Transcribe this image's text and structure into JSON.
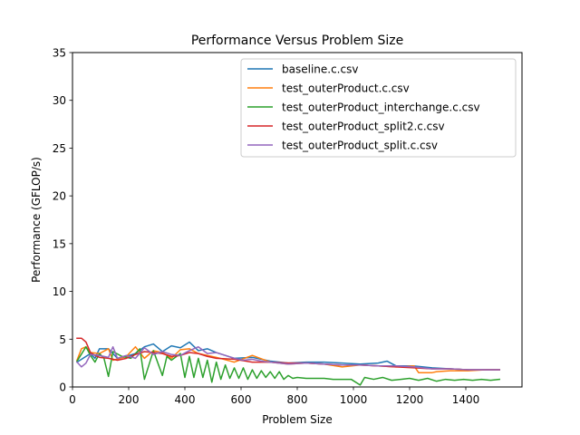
{
  "chart_data": {
    "type": "line",
    "title": "Performance Versus Problem Size",
    "xlabel": "Problem Size",
    "ylabel": "Performance (GFLOP/s)",
    "xlim": [
      0,
      1600
    ],
    "ylim": [
      0,
      35
    ],
    "x_ticks": [
      0,
      200,
      400,
      600,
      800,
      1000,
      1200,
      1400
    ],
    "y_ticks": [
      0,
      5,
      10,
      15,
      20,
      25,
      30,
      35
    ],
    "grid": false,
    "legend_position": "top-right",
    "series": [
      {
        "name": "baseline.c.csv",
        "color": "#1f77b4",
        "x": [
          16,
          64,
          80,
          96,
          128,
          160,
          192,
          224,
          256,
          288,
          320,
          352,
          384,
          416,
          448,
          480,
          512,
          576,
          640,
          704,
          768,
          832,
          896,
          960,
          1024,
          1088,
          1120,
          1152,
          1216,
          1280,
          1344,
          1408,
          1472,
          1520
        ],
        "y": [
          2.6,
          3.5,
          3.0,
          4.0,
          4.0,
          3.0,
          3.2,
          3.5,
          4.2,
          4.5,
          3.7,
          4.3,
          4.1,
          4.7,
          3.8,
          4.0,
          3.6,
          3.0,
          3.1,
          2.7,
          2.5,
          2.6,
          2.6,
          2.5,
          2.4,
          2.5,
          2.7,
          2.2,
          2.2,
          2.0,
          1.9,
          1.8,
          1.8,
          1.8
        ]
      },
      {
        "name": "test_outerProduct.c.csv",
        "color": "#ff7f0e",
        "x": [
          16,
          32,
          48,
          64,
          96,
          128,
          144,
          192,
          224,
          256,
          288,
          320,
          352,
          384,
          416,
          448,
          480,
          512,
          576,
          640,
          704,
          768,
          832,
          896,
          960,
          1024,
          1088,
          1152,
          1216,
          1232,
          1280,
          1296,
          1344,
          1408,
          1472,
          1520
        ],
        "y": [
          2.8,
          4.0,
          4.2,
          3.6,
          3.5,
          4.0,
          2.8,
          3.2,
          4.2,
          3.0,
          3.8,
          3.6,
          3.0,
          3.9,
          4.0,
          3.5,
          3.3,
          3.1,
          2.6,
          3.3,
          2.6,
          2.4,
          2.5,
          2.4,
          2.1,
          2.3,
          2.2,
          2.1,
          2.2,
          1.5,
          1.5,
          1.6,
          1.7,
          1.7,
          1.8,
          1.8
        ]
      },
      {
        "name": "test_outerProduct_interchange.c.csv",
        "color": "#2ca02c",
        "x": [
          16,
          48,
          64,
          80,
          96,
          112,
          128,
          144,
          176,
          208,
          240,
          256,
          288,
          320,
          336,
          352,
          384,
          400,
          416,
          432,
          448,
          464,
          480,
          496,
          512,
          528,
          544,
          560,
          576,
          592,
          608,
          624,
          640,
          656,
          672,
          688,
          704,
          720,
          736,
          752,
          768,
          784,
          800,
          832,
          864,
          896,
          928,
          960,
          992,
          1024,
          1040,
          1072,
          1104,
          1136,
          1168,
          1200,
          1232,
          1264,
          1296,
          1328,
          1360,
          1392,
          1424,
          1456,
          1488,
          1520
        ],
        "y": [
          2.7,
          4.2,
          3.3,
          2.6,
          3.5,
          3.0,
          1.1,
          3.7,
          3.2,
          3.0,
          4.0,
          0.8,
          3.8,
          1.2,
          3.2,
          2.8,
          3.5,
          1.0,
          3.2,
          1.0,
          3.0,
          1.0,
          2.8,
          0.5,
          2.6,
          0.8,
          2.3,
          0.9,
          2.0,
          0.9,
          2.0,
          0.8,
          1.8,
          0.9,
          1.7,
          1.0,
          1.6,
          0.9,
          1.6,
          0.8,
          1.2,
          0.9,
          1.0,
          0.9,
          0.9,
          0.9,
          0.8,
          0.8,
          0.8,
          0.2,
          1.0,
          0.8,
          1.0,
          0.7,
          0.8,
          0.9,
          0.7,
          0.9,
          0.6,
          0.8,
          0.7,
          0.8,
          0.7,
          0.8,
          0.7,
          0.8
        ]
      },
      {
        "name": "test_outerProduct_split2.c.csv",
        "color": "#d62728",
        "x": [
          16,
          32,
          48,
          64,
          80,
          96,
          128,
          160,
          192,
          224,
          256,
          288,
          320,
          352,
          384,
          416,
          448,
          480,
          512,
          576,
          640,
          704,
          768,
          832,
          896,
          960,
          1024,
          1088,
          1152,
          1216,
          1280,
          1344,
          1408,
          1472,
          1520
        ],
        "y": [
          5.1,
          5.1,
          4.7,
          3.6,
          3.3,
          3.1,
          3.0,
          2.8,
          3.0,
          3.4,
          3.7,
          3.6,
          3.5,
          3.2,
          3.3,
          3.6,
          3.5,
          3.2,
          3.0,
          2.9,
          2.6,
          2.6,
          2.5,
          2.5,
          2.4,
          2.3,
          2.3,
          2.2,
          2.1,
          2.0,
          1.9,
          1.9,
          1.8,
          1.8,
          1.8
        ]
      },
      {
        "name": "test_outerProduct_split.c.csv",
        "color": "#9467bd",
        "x": [
          16,
          32,
          48,
          64,
          96,
          128,
          144,
          160,
          192,
          224,
          256,
          288,
          320,
          352,
          384,
          416,
          448,
          480,
          512,
          544,
          576,
          608,
          640,
          672,
          704,
          768,
          832,
          896,
          960,
          1024,
          1088,
          1152,
          1216,
          1280,
          1344,
          1408,
          1472,
          1520
        ],
        "y": [
          2.6,
          2.1,
          2.5,
          3.4,
          3.3,
          3.1,
          4.2,
          3.0,
          3.3,
          3.0,
          4.1,
          3.4,
          3.7,
          3.4,
          3.3,
          3.8,
          4.2,
          3.5,
          3.6,
          3.3,
          3.0,
          2.8,
          2.9,
          2.7,
          2.6,
          2.4,
          2.5,
          2.4,
          2.3,
          2.3,
          2.2,
          2.2,
          2.1,
          1.9,
          1.9,
          1.8,
          1.8,
          1.8
        ]
      }
    ]
  }
}
